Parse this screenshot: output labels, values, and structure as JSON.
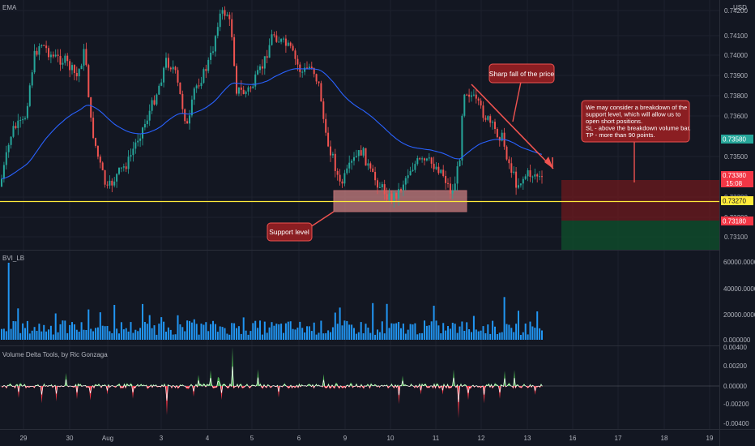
{
  "price_pane": {
    "indicator_label": "EMA",
    "currency": "USD",
    "y_ticks": [
      "0.74200",
      "0.74100",
      "0.74000",
      "0.73900",
      "0.73800",
      "0.73600",
      "0.73500",
      "0.73300",
      "0.73200",
      "0.73100"
    ],
    "badges": {
      "ema": "0.73580",
      "last_price": "0.73380",
      "countdown": "15:08",
      "support": "0.73270",
      "lower": "0.73180"
    },
    "annotations": {
      "sharp_fall": "Sharp fall of the price",
      "support": "Support level",
      "idea": "We may consider a breakdown of the support level, which will allow us to open short positions.\nSL - above the breakdown volume bar.\nTP - more than 90 points."
    }
  },
  "volume_pane": {
    "label": "BVI_LB",
    "y_ticks": [
      "60000.000000",
      "40000.000000",
      "20000.000000",
      "0.000000"
    ]
  },
  "delta_pane": {
    "label": "Volume Delta Tools, by Ric Gonzaga",
    "y_ticks": [
      "0.00400",
      "0.00200",
      "0.00000",
      "-0.00200",
      "-0.00400"
    ]
  },
  "x_axis": {
    "labels": [
      "29",
      "30",
      "Aug",
      "3",
      "4",
      "5",
      "6",
      "9",
      "10",
      "11",
      "12",
      "13",
      "16",
      "17",
      "18",
      "19"
    ]
  },
  "colors": {
    "background": "#131722",
    "up": "#26a69a",
    "down": "#ef5350",
    "ema": "#2962ff",
    "support_line": "#ffeb3b",
    "annotation_fill": "#8b1e22",
    "annotation_border": "#ef5350",
    "volume": "#2196f3",
    "delta_up": "#4caf50",
    "delta_down": "#f23645"
  }
}
